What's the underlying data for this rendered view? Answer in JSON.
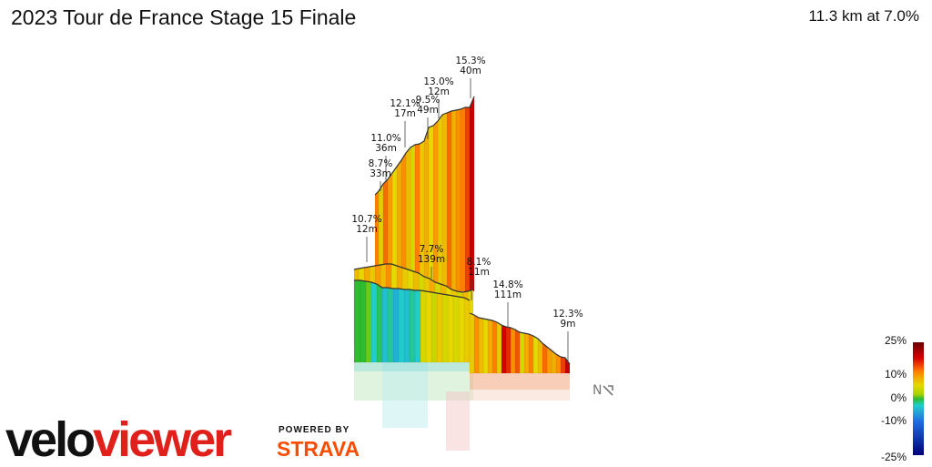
{
  "header": {
    "title": "2023 Tour de France Stage 15 Finale",
    "summary": "11.3 km at 7.0%"
  },
  "chart_data": {
    "type": "area",
    "title": "2023 Tour de France Stage 15 Finale",
    "subtitle": "11.3 km at 7.0%",
    "distance_km": 11.3,
    "average_gradient_pct": 7.0,
    "annotations": [
      {
        "gradient": "15.3%",
        "length": "40m"
      },
      {
        "gradient": "13.0%",
        "length": "12m"
      },
      {
        "gradient": "9.5%",
        "length": "49m"
      },
      {
        "gradient": "12.1%",
        "length": "17m"
      },
      {
        "gradient": "11.0%",
        "length": "36m"
      },
      {
        "gradient": "8.7%",
        "length": "33m"
      },
      {
        "gradient": "10.7%",
        "length": "12m"
      },
      {
        "gradient": "7.7%",
        "length": "139m"
      },
      {
        "gradient": "8.1%",
        "length": "11m"
      },
      {
        "gradient": "14.8%",
        "length": "111m"
      },
      {
        "gradient": "12.3%",
        "length": "9m"
      }
    ],
    "gradient_legend": {
      "range": [
        -25,
        25
      ],
      "labels": [
        "25%",
        "10%",
        "0%",
        "-10%",
        "-25%"
      ],
      "stops": [
        {
          "value": 25,
          "color": "#6b0000"
        },
        {
          "value": 18,
          "color": "#d40000"
        },
        {
          "value": 12,
          "color": "#ff8000"
        },
        {
          "value": 6,
          "color": "#e6d800"
        },
        {
          "value": 2,
          "color": "#a8d400"
        },
        {
          "value": 0,
          "color": "#2ebd2e"
        },
        {
          "value": -3,
          "color": "#22cccc"
        },
        {
          "value": -10,
          "color": "#1e6ee6"
        },
        {
          "value": -25,
          "color": "#00007a"
        }
      ]
    },
    "compass": "N"
  },
  "branding": {
    "logo_part_a": "velo",
    "logo_part_b": "viewer",
    "powered_by": "POWERED BY",
    "strava": "STRAVA"
  }
}
